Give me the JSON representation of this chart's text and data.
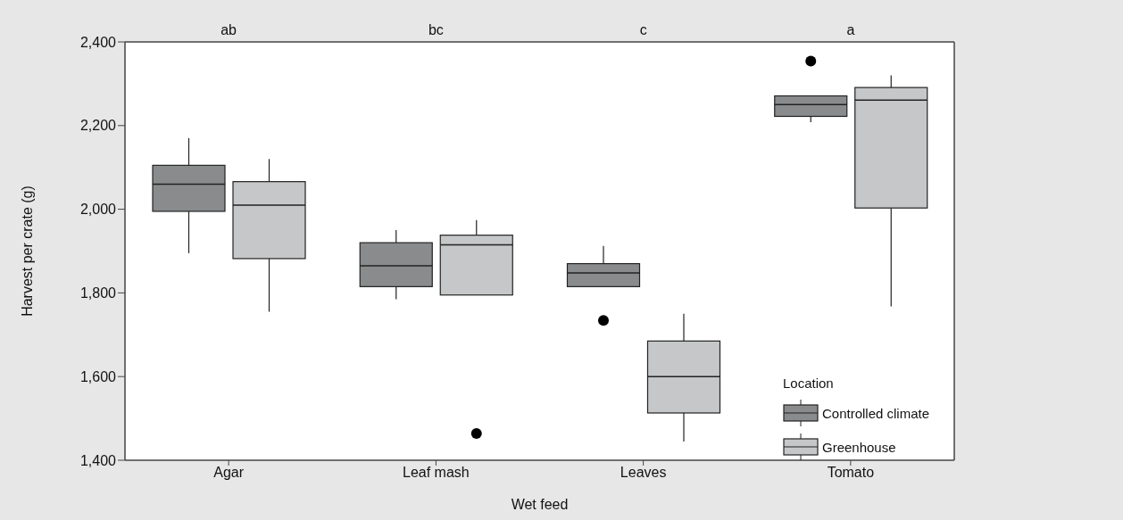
{
  "chart_data": {
    "type": "box",
    "xlabel": "Wet feed",
    "ylabel": "Harvest per crate (g)",
    "legend_title": "Location",
    "legend": "bottom right",
    "categories": [
      "Agar",
      "Leaf mash",
      "Leaves",
      "Tomato"
    ],
    "ylim": [
      1400,
      2400
    ],
    "yticks": [
      {
        "value": 1400,
        "label": "1,400"
      },
      {
        "value": 1600,
        "label": "1,600"
      },
      {
        "value": 1800,
        "label": "1,800"
      },
      {
        "value": 2000,
        "label": "2,000"
      },
      {
        "value": 2200,
        "label": "2,200"
      },
      {
        "value": 2400,
        "label": "2,400"
      }
    ],
    "series": [
      {
        "name": "Controlled climate",
        "color": "#8a8b8c",
        "boxes": [
          {
            "low": 1895,
            "q1": 1995,
            "median": 2060,
            "q3": 2105,
            "high": 2170
          },
          {
            "low": 1785,
            "q1": 1815,
            "median": 1865,
            "q3": 1920,
            "high": 1950
          },
          {
            "low": 1815,
            "q1": 1815,
            "median": 1848,
            "q3": 1870,
            "high": 1912,
            "outliers": [
              1734
            ]
          },
          {
            "low": 2208,
            "q1": 2222,
            "median": 2250,
            "q3": 2271,
            "high": 2271,
            "outliers": [
              2354
            ]
          }
        ]
      },
      {
        "name": "Greenhouse",
        "color": "#c6c7c9",
        "boxes": [
          {
            "low": 1755,
            "q1": 1882,
            "median": 2010,
            "q3": 2066,
            "high": 2120
          },
          {
            "low": 1795,
            "q1": 1795,
            "median": 1915,
            "q3": 1938,
            "high": 1974,
            "outliers": [
              1464
            ]
          },
          {
            "low": 1445,
            "q1": 1513,
            "median": 1600,
            "q3": 1685,
            "high": 1750
          },
          {
            "low": 1768,
            "q1": 2003,
            "median": 2261,
            "q3": 2291,
            "high": 2320
          }
        ]
      }
    ],
    "annotations": [
      "ab",
      "bc",
      "c",
      "a"
    ]
  }
}
